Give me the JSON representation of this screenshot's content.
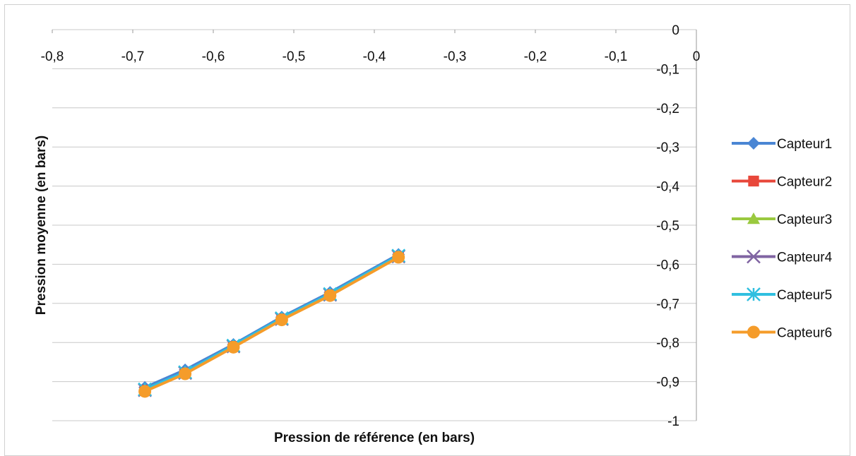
{
  "chart_data": {
    "type": "line",
    "xlabel": "Pression de référence (en bars)",
    "ylabel": "Pression moyenne (en bars)",
    "xlim": [
      -0.8,
      0
    ],
    "ylim": [
      -1,
      0
    ],
    "x_ticks": [
      "-0,8",
      "-0,7",
      "-0,6",
      "-0,5",
      "-0,4",
      "-0,3",
      "-0,2",
      "-0,1",
      "0"
    ],
    "y_ticks": [
      "0",
      "-0,1",
      "-0,2",
      "-0,3",
      "-0,4",
      "-0,5",
      "-0,6",
      "-0,7",
      "-0,8",
      "-0,9",
      "-1"
    ],
    "grid": "horizontal",
    "legend_position": "right",
    "x": [
      -0.685,
      -0.635,
      -0.575,
      -0.515,
      -0.455,
      -0.37
    ],
    "series": [
      {
        "name": "Capteur1",
        "color": "#4a86d4",
        "marker": "diamond",
        "values": [
          -0.915,
          -0.87,
          -0.805,
          -0.735,
          -0.672,
          -0.575
        ]
      },
      {
        "name": "Capteur2",
        "color": "#e8473a",
        "marker": "square",
        "values": [
          -0.922,
          -0.878,
          -0.81,
          -0.74,
          -0.678,
          -0.58
        ]
      },
      {
        "name": "Capteur3",
        "color": "#9ac93f",
        "marker": "triangle",
        "values": [
          -0.922,
          -0.878,
          -0.81,
          -0.74,
          -0.678,
          -0.58
        ]
      },
      {
        "name": "Capteur4",
        "color": "#8064a2",
        "marker": "x",
        "values": [
          -0.922,
          -0.878,
          -0.81,
          -0.74,
          -0.678,
          -0.58
        ]
      },
      {
        "name": "Capteur5",
        "color": "#30bfe0",
        "marker": "star",
        "values": [
          -0.92,
          -0.876,
          -0.808,
          -0.738,
          -0.676,
          -0.578
        ]
      },
      {
        "name": "Capteur6",
        "color": "#f59c2a",
        "marker": "circle",
        "values": [
          -0.925,
          -0.88,
          -0.812,
          -0.742,
          -0.68,
          -0.582
        ]
      }
    ]
  }
}
